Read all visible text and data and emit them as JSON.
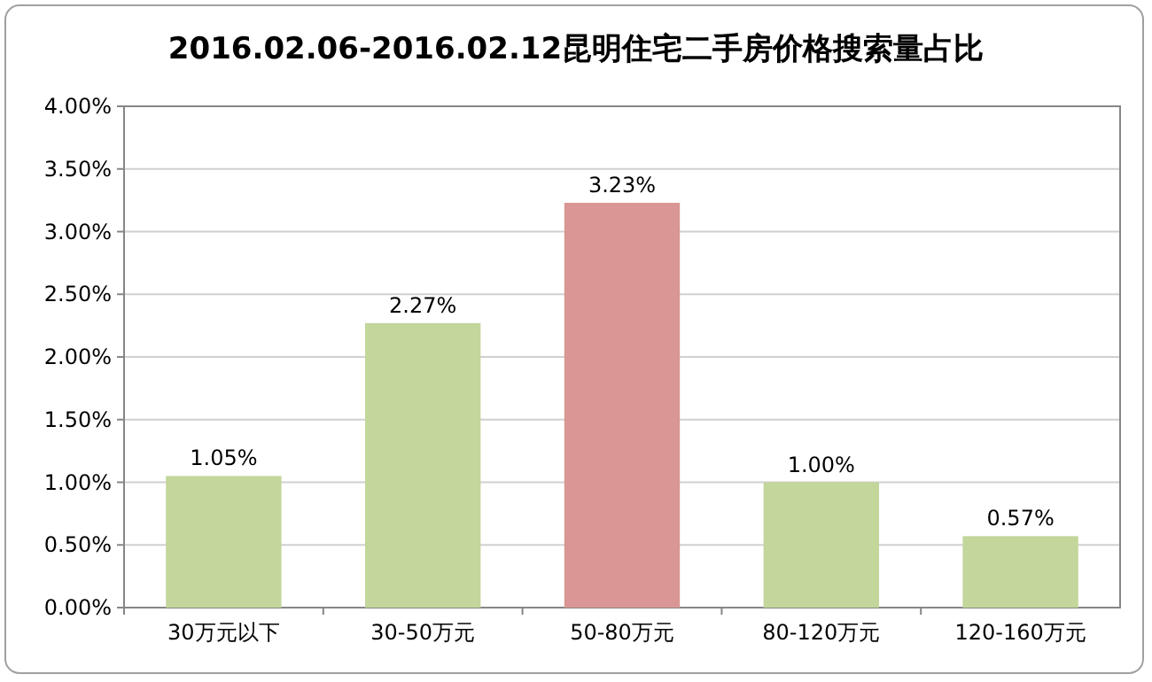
{
  "chart_data": {
    "type": "bar",
    "title": "2016.02.06-2016.02.12昆明住宅二手房价格搜索量占比",
    "categories": [
      "30万元以下",
      "30-50万元",
      "50-80万元",
      "80-120万元",
      "120-160万元"
    ],
    "values": [
      1.05,
      2.27,
      3.23,
      1.0,
      0.57
    ],
    "value_labels": [
      "1.05%",
      "2.27%",
      "3.23%",
      "1.00%",
      "0.57%"
    ],
    "colors": [
      "#c3d69b",
      "#c3d69b",
      "#d99694",
      "#c3d69b",
      "#c3d69b"
    ],
    "ylim": [
      0,
      4
    ],
    "yticks": [
      {
        "value": 0,
        "label": "0.00%"
      },
      {
        "value": 0.5,
        "label": "0.50%"
      },
      {
        "value": 1,
        "label": "1.00%"
      },
      {
        "value": 1.5,
        "label": "1.50%"
      },
      {
        "value": 2,
        "label": "2.00%"
      },
      {
        "value": 2.5,
        "label": "2.50%"
      },
      {
        "value": 3,
        "label": "3.00%"
      },
      {
        "value": 3.5,
        "label": "3.50%"
      },
      {
        "value": 4,
        "label": "4.00%"
      }
    ],
    "grid": "y"
  }
}
